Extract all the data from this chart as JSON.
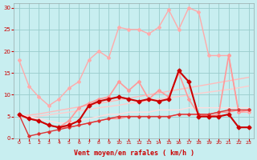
{
  "x": [
    0,
    1,
    2,
    3,
    4,
    5,
    6,
    7,
    8,
    9,
    10,
    11,
    12,
    13,
    14,
    15,
    16,
    17,
    18,
    19,
    20,
    21,
    22,
    23
  ],
  "bg_color": "#c8eef0",
  "grid_color": "#99cccc",
  "xlabel": "Vent moyen/en rafales ( km/h )",
  "ylim": [
    0,
    31
  ],
  "xlim": [
    -0.5,
    23.5
  ],
  "yticks": [
    0,
    5,
    10,
    15,
    20,
    25,
    30
  ],
  "series": [
    {
      "y": [
        18,
        12,
        9.5,
        7.5,
        9,
        11.5,
        13,
        18,
        20,
        18.5,
        25.5,
        25,
        25,
        24,
        25.5,
        29.5,
        25,
        30,
        29,
        19,
        19,
        19,
        6,
        6
      ],
      "color": "#ffaaaa",
      "lw": 1.0,
      "marker": "D",
      "ms": 2.0,
      "zorder": 2
    },
    {
      "y": [
        5.5,
        4.5,
        4,
        3,
        2.5,
        4,
        7,
        8,
        9,
        9.5,
        13,
        11,
        13,
        9,
        11,
        9.5,
        15,
        9,
        5.5,
        5,
        5.5,
        19,
        6,
        6.5
      ],
      "color": "#ff9999",
      "lw": 1.2,
      "marker": "D",
      "ms": 2.0,
      "zorder": 3
    },
    {
      "y": [
        5.5,
        4.5,
        4,
        3,
        2.5,
        3,
        4,
        7.5,
        8.5,
        9,
        9.5,
        9,
        8.5,
        9,
        8.5,
        9,
        15.5,
        13,
        5,
        5,
        5,
        5.5,
        2.5,
        2.5
      ],
      "color": "#cc0000",
      "lw": 1.5,
      "marker": "D",
      "ms": 2.5,
      "zorder": 4
    },
    {
      "y": [
        5.0,
        5.3,
        5.6,
        6.0,
        6.4,
        6.8,
        7.2,
        7.6,
        8.0,
        8.4,
        8.8,
        9.2,
        9.6,
        10.0,
        10.4,
        10.8,
        11.2,
        11.6,
        12.0,
        12.4,
        12.8,
        13.2,
        13.6,
        14.0
      ],
      "color": "#ffbbbb",
      "lw": 1.0,
      "marker": null,
      "ms": 0,
      "zorder": 2
    },
    {
      "y": [
        4.5,
        4.8,
        5.1,
        5.4,
        5.7,
        6.0,
        6.3,
        6.6,
        7.0,
        7.3,
        7.6,
        8.0,
        8.3,
        8.6,
        9.0,
        9.3,
        9.6,
        9.9,
        10.3,
        10.6,
        10.9,
        11.2,
        11.6,
        12.0
      ],
      "color": "#ffcccc",
      "lw": 1.0,
      "marker": null,
      "ms": 0,
      "zorder": 2
    },
    {
      "y": [
        5.5,
        4.5,
        4,
        3,
        2.5,
        2.5,
        3,
        3.5,
        4,
        4.5,
        4.5,
        5,
        5,
        5,
        5,
        5,
        5.5,
        5.5,
        5.5,
        5.5,
        6,
        6,
        6.5,
        6.5
      ],
      "color": "#ff8888",
      "lw": 1.0,
      "marker": null,
      "ms": 0,
      "zorder": 2
    },
    {
      "y": [
        5.5,
        5.0,
        4.5,
        4.0,
        3.5,
        3.5,
        4.0,
        4.5,
        5.0,
        5.5,
        5.5,
        6.0,
        6.0,
        6.0,
        6.5,
        6.5,
        6.5,
        7.0,
        7.0,
        7.0,
        7.0,
        7.0,
        7.0,
        7.0
      ],
      "color": "#ffdddd",
      "lw": 1.0,
      "marker": null,
      "ms": 0,
      "zorder": 2
    },
    {
      "y": [
        5.5,
        0.5,
        1.0,
        1.5,
        2.0,
        2.5,
        3.0,
        3.5,
        4.0,
        4.5,
        5.0,
        5.0,
        5.0,
        5.0,
        5.0,
        5.0,
        5.5,
        5.5,
        5.5,
        5.5,
        6.0,
        6.5,
        6.5,
        6.5
      ],
      "color": "#dd3333",
      "lw": 1.0,
      "marker": "D",
      "ms": 1.8,
      "zorder": 3
    }
  ]
}
